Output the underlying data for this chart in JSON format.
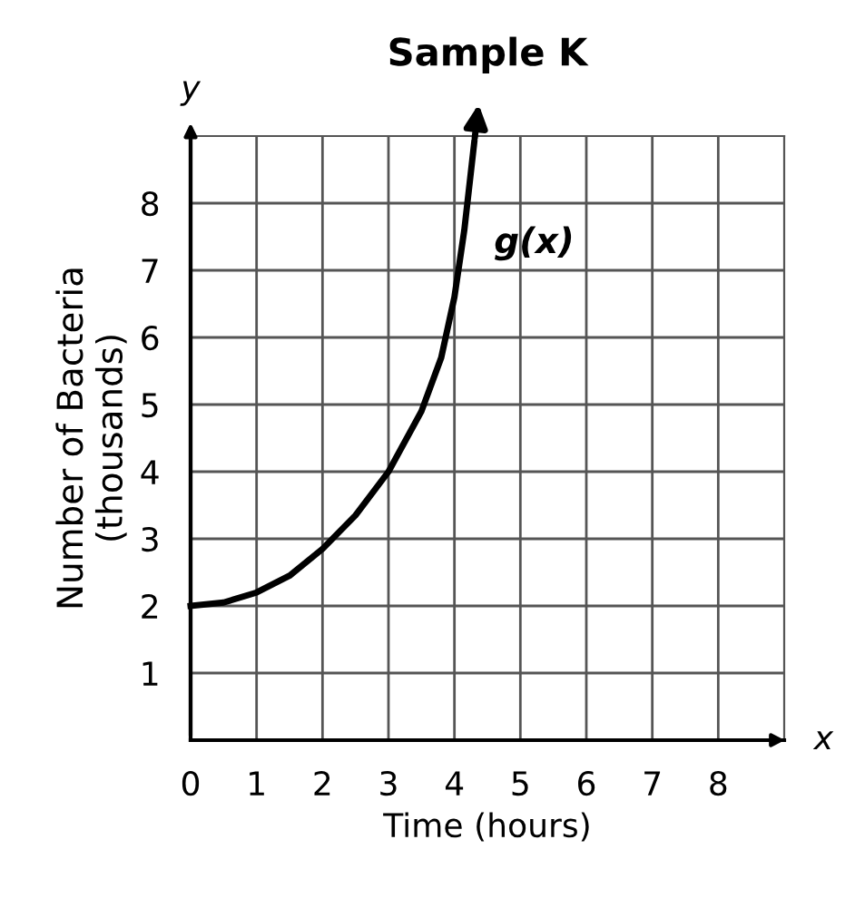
{
  "chart_data": {
    "type": "line",
    "title": "Sample K",
    "xlabel": "Time (hours)",
    "ylabel": "Number of Bacteria\n(thousands)",
    "x": [
      0,
      0.5,
      1,
      1.5,
      2,
      2.5,
      3,
      3.5,
      3.8,
      4,
      4.15,
      4.3
    ],
    "series": [
      {
        "name": "g(x)",
        "color": "#000000",
        "values": [
          2,
          2.05,
          2.2,
          2.45,
          2.85,
          3.35,
          4.0,
          4.9,
          5.7,
          6.6,
          7.6,
          8.9
        ]
      }
    ],
    "xlim": [
      0,
      9
    ],
    "ylim": [
      0,
      9
    ],
    "xticks": [
      0,
      1,
      2,
      3,
      4,
      5,
      6,
      7,
      8
    ],
    "yticks": [
      1,
      2,
      3,
      4,
      5,
      6,
      7,
      8
    ],
    "grid": true,
    "legend": false,
    "marker": "none",
    "line_style": "solid",
    "annotations": [
      "x",
      "y"
    ]
  }
}
